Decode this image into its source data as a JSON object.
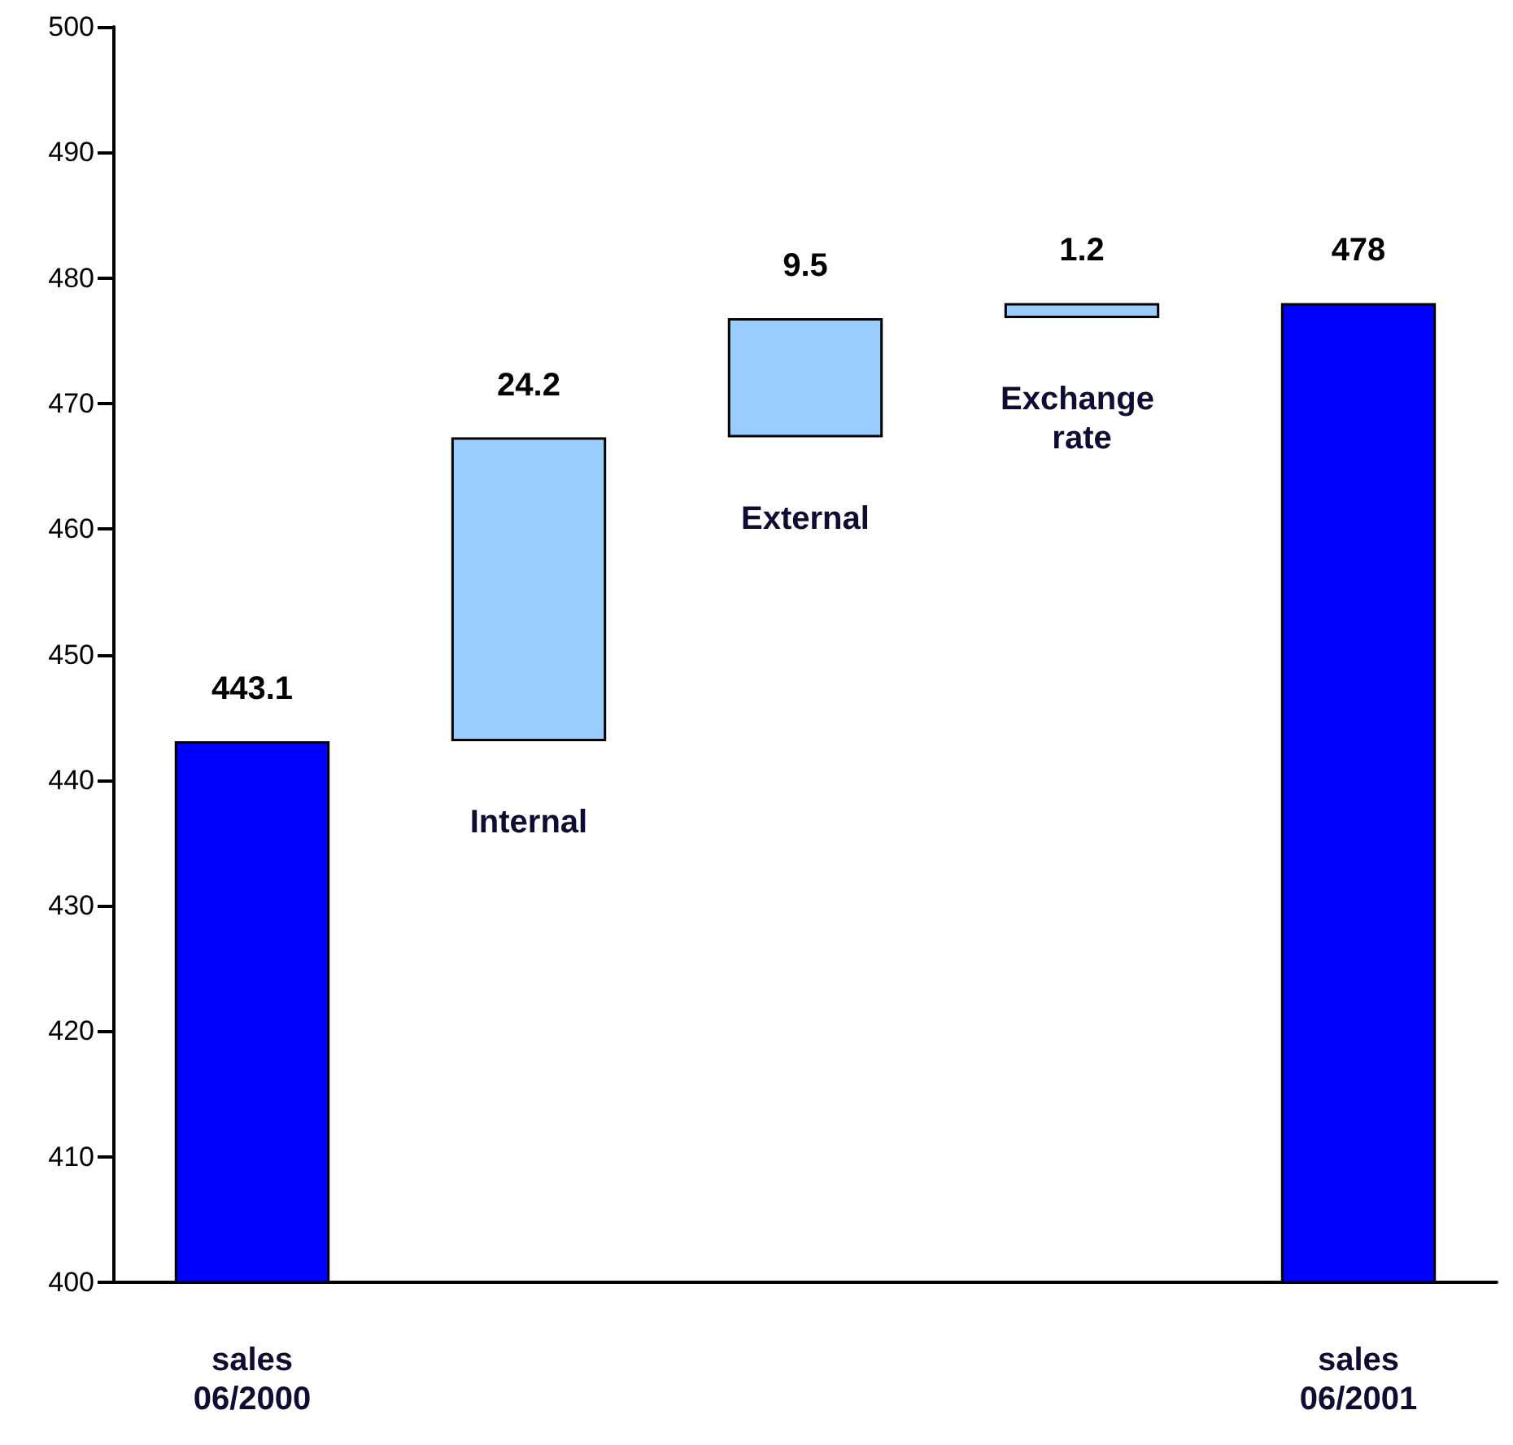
{
  "chart_data": {
    "type": "bar",
    "categories": [
      "sales 06/2000",
      "Internal",
      "External",
      "Exchange rate",
      "sales 06/2001"
    ],
    "values": [
      443.1,
      24.2,
      9.5,
      1.2,
      478
    ],
    "base": [
      null,
      443.1,
      467.3,
      476.8,
      null
    ],
    "colors": [
      "#0000ff",
      "#99ccff",
      "#99ccff",
      "#99ccff",
      "#0000ff"
    ],
    "ylim": [
      400,
      500
    ],
    "yticks": [
      400,
      410,
      420,
      430,
      440,
      450,
      460,
      470,
      480,
      490,
      500
    ],
    "data_labels": true,
    "grid": false
  }
}
